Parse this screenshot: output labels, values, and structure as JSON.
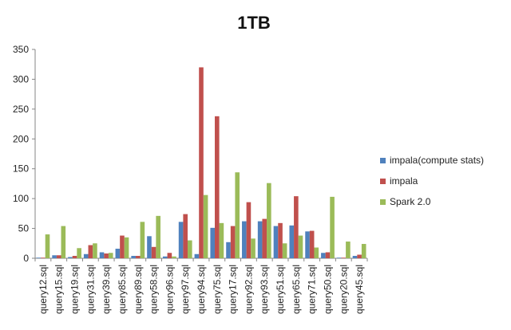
{
  "chart_data": {
    "type": "bar",
    "title": "1TB",
    "xlabel": "",
    "ylabel": "",
    "ylim": [
      0,
      350
    ],
    "yticks": [
      0,
      50,
      100,
      150,
      200,
      250,
      300,
      350
    ],
    "grid": false,
    "legend_position": "right",
    "categories": [
      "query12.sql",
      "query15.sql",
      "query19.sql",
      "query31.sql",
      "query39.sql",
      "query85.sql",
      "query89.sql",
      "query58.sql",
      "query96.sql",
      "query97.sql",
      "query94.sql",
      "query75.sql",
      "query17.sql",
      "query92.sql",
      "query93.sql",
      "query51.sql",
      "query65.sql",
      "query71.sql",
      "query50.sql",
      "query20.sql",
      "query45.sql"
    ],
    "series": [
      {
        "name": "impala(compute stats)",
        "color": "#4F81BD",
        "values": [
          1,
          5,
          2,
          7,
          10,
          16,
          4,
          37,
          3,
          61,
          7,
          51,
          27,
          62,
          62,
          54,
          55,
          45,
          9,
          1,
          4
        ]
      },
      {
        "name": "impala",
        "color": "#C0504D",
        "values": [
          1,
          5,
          4,
          22,
          8,
          38,
          4,
          19,
          9,
          74,
          320,
          238,
          54,
          94,
          66,
          59,
          104,
          46,
          10,
          1,
          6
        ]
      },
      {
        "name": "Spark 2.0",
        "color": "#9BBB59",
        "values": [
          40,
          54,
          17,
          25,
          9,
          35,
          61,
          71,
          3,
          30,
          106,
          59,
          144,
          33,
          126,
          25,
          38,
          18,
          103,
          28,
          24
        ]
      }
    ]
  }
}
